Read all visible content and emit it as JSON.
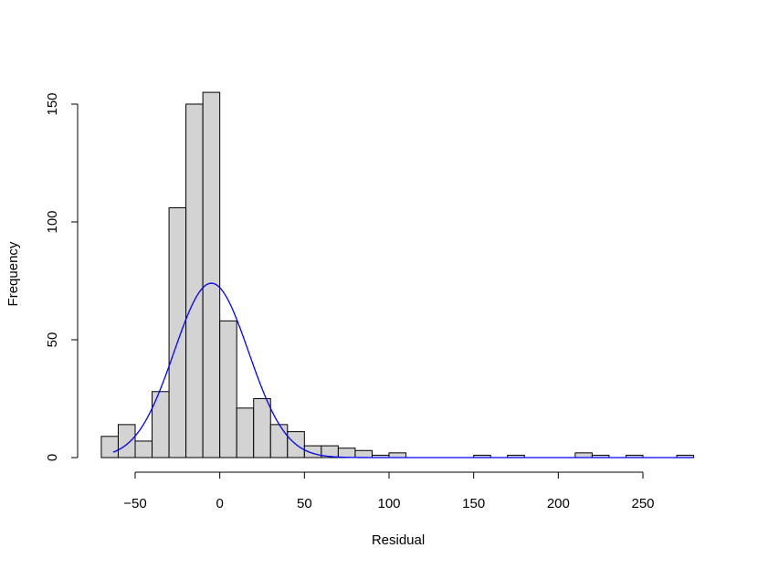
{
  "chart_data": {
    "type": "bar",
    "title": "",
    "xlabel": "Residual",
    "ylabel": "Frequency",
    "bin_width": 10,
    "bins": [
      {
        "x0": -70,
        "x1": -60,
        "count": 9
      },
      {
        "x0": -60,
        "x1": -50,
        "count": 14
      },
      {
        "x0": -50,
        "x1": -40,
        "count": 7
      },
      {
        "x0": -40,
        "x1": -30,
        "count": 28
      },
      {
        "x0": -30,
        "x1": -20,
        "count": 106
      },
      {
        "x0": -20,
        "x1": -10,
        "count": 150
      },
      {
        "x0": -10,
        "x1": 0,
        "count": 155
      },
      {
        "x0": 0,
        "x1": 10,
        "count": 58
      },
      {
        "x0": 10,
        "x1": 20,
        "count": 21
      },
      {
        "x0": 20,
        "x1": 30,
        "count": 25
      },
      {
        "x0": 30,
        "x1": 40,
        "count": 14
      },
      {
        "x0": 40,
        "x1": 50,
        "count": 11
      },
      {
        "x0": 50,
        "x1": 60,
        "count": 5
      },
      {
        "x0": 60,
        "x1": 70,
        "count": 5
      },
      {
        "x0": 70,
        "x1": 80,
        "count": 4
      },
      {
        "x0": 80,
        "x1": 90,
        "count": 3
      },
      {
        "x0": 90,
        "x1": 100,
        "count": 1
      },
      {
        "x0": 100,
        "x1": 110,
        "count": 2
      },
      {
        "x0": 110,
        "x1": 120,
        "count": 0
      },
      {
        "x0": 120,
        "x1": 130,
        "count": 0
      },
      {
        "x0": 130,
        "x1": 140,
        "count": 0
      },
      {
        "x0": 140,
        "x1": 150,
        "count": 0
      },
      {
        "x0": 150,
        "x1": 160,
        "count": 1
      },
      {
        "x0": 160,
        "x1": 170,
        "count": 0
      },
      {
        "x0": 170,
        "x1": 180,
        "count": 1
      },
      {
        "x0": 180,
        "x1": 190,
        "count": 0
      },
      {
        "x0": 190,
        "x1": 200,
        "count": 0
      },
      {
        "x0": 200,
        "x1": 210,
        "count": 0
      },
      {
        "x0": 210,
        "x1": 220,
        "count": 2
      },
      {
        "x0": 220,
        "x1": 230,
        "count": 1
      },
      {
        "x0": 230,
        "x1": 240,
        "count": 0
      },
      {
        "x0": 240,
        "x1": 250,
        "count": 1
      },
      {
        "x0": 250,
        "x1": 260,
        "count": 0
      },
      {
        "x0": 260,
        "x1": 270,
        "count": 0
      },
      {
        "x0": 270,
        "x1": 280,
        "count": 1
      }
    ],
    "xticks": [
      -50,
      0,
      50,
      100,
      150,
      200,
      250
    ],
    "xtick_labels": [
      "−50",
      "0",
      "50",
      "100",
      "150",
      "200",
      "250"
    ],
    "yticks": [
      0,
      50,
      100,
      150
    ],
    "ytick_labels": [
      "0",
      "50",
      "100",
      "150"
    ],
    "xlim": [
      -70,
      280
    ],
    "ylim": [
      0,
      155
    ],
    "normal_curve": {
      "color": "#0000ff",
      "mean": -5,
      "sd": 22,
      "peak": 74,
      "x_range": [
        -63,
        280
      ]
    },
    "bar_fill": "#d3d3d3",
    "bar_stroke": "#000000",
    "grid": false,
    "legend": "none"
  }
}
